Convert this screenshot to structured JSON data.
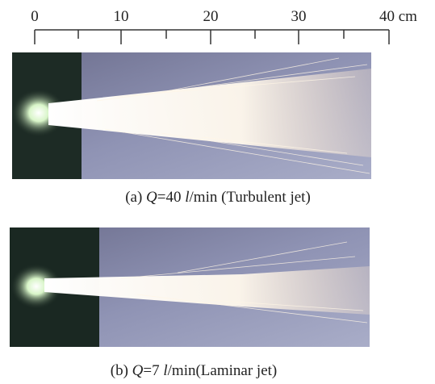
{
  "scale": {
    "labels": [
      "0",
      "10",
      "20",
      "30",
      "40 cm"
    ]
  },
  "panels": [
    {
      "caption": [
        "(a) ",
        "Q",
        "=40 ",
        "l",
        "/min (Turbulent jet)"
      ]
    },
    {
      "caption": [
        "(b) ",
        "Q",
        "=7 ",
        "l",
        "/min(Laminar jet)"
      ]
    }
  ]
}
